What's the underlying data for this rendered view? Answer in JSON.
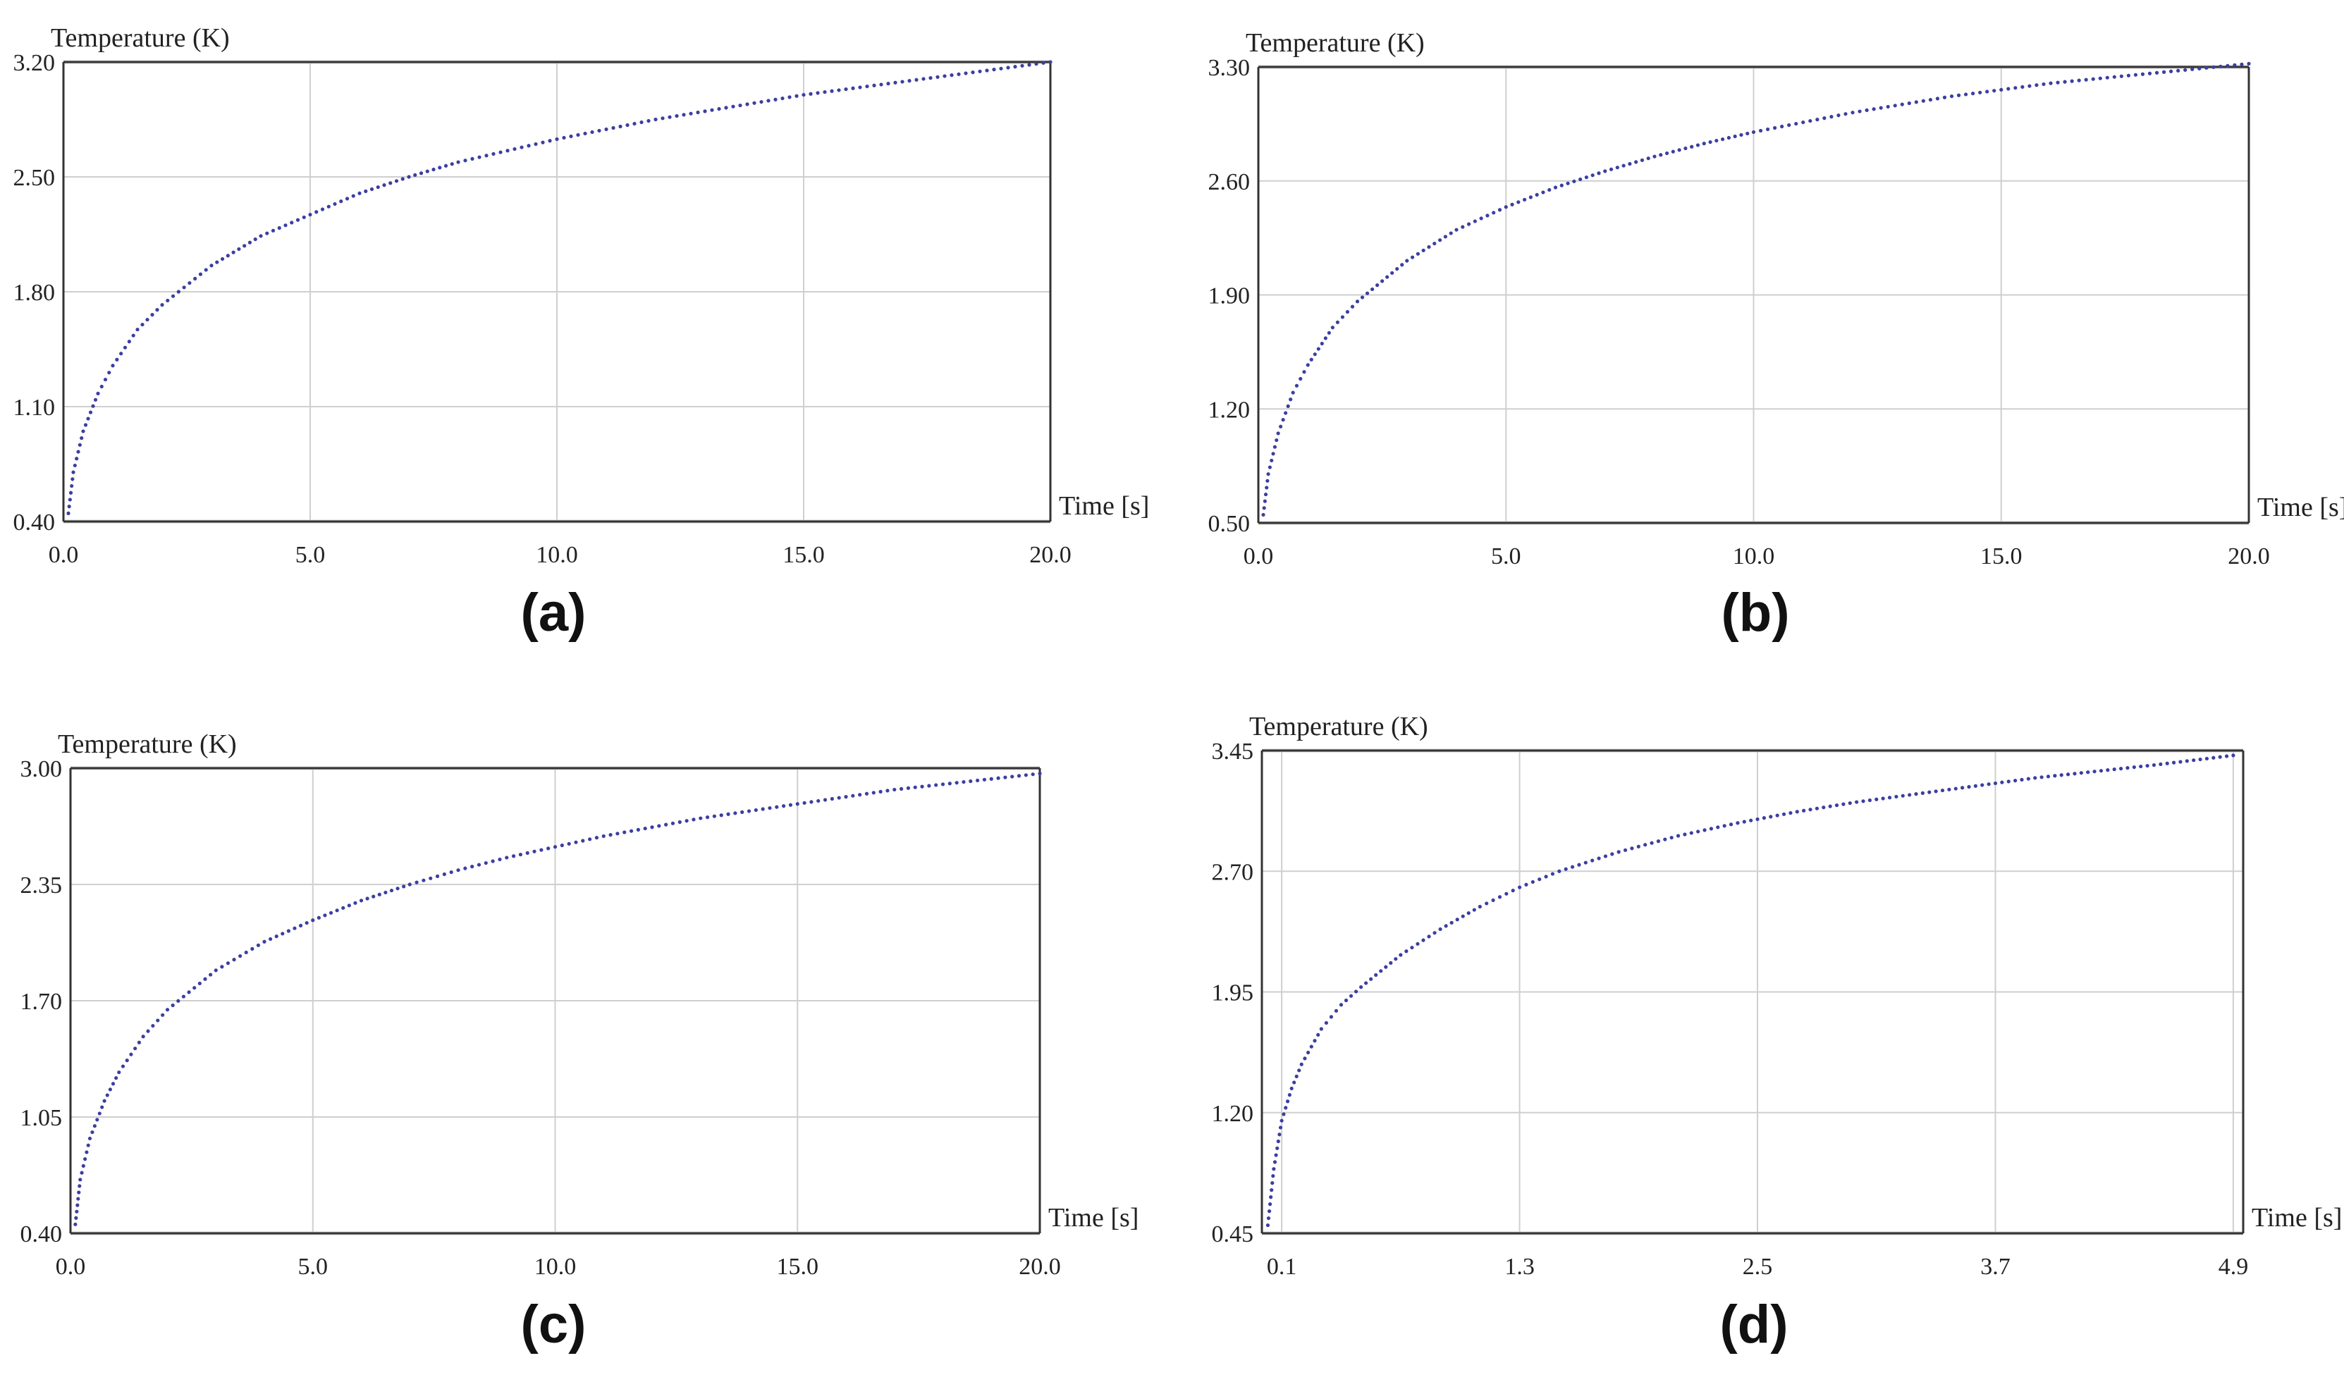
{
  "figure": {
    "panels": [
      {
        "caption": "(a)",
        "chart_data": {
          "type": "scatter",
          "ylabel": "Temperature (K)",
          "xlabel": "Time [s]",
          "xticks": [
            "0.0",
            "5.0",
            "10.0",
            "15.0",
            "20.0"
          ],
          "yticks": [
            "0.40",
            "1.10",
            "1.80",
            "2.50",
            "3.20"
          ],
          "xlim": [
            0,
            20
          ],
          "ylim": [
            0.4,
            3.2
          ],
          "grid": true,
          "colors": {
            "points": "#3b3fa0",
            "grid": "#cfcfcf",
            "frame": "#333333"
          },
          "series": [
            {
              "x": [
                0.1,
                0.2,
                0.4,
                0.7,
                1.0,
                1.5,
                2.0,
                3.0,
                4.0,
                5.0,
                6.0,
                7.0,
                8.0,
                9.0,
                10.0,
                11.0,
                12.0,
                13.0,
                14.0,
                15.0,
                16.0,
                17.0,
                18.0,
                19.0,
                20.0
              ],
              "y": [
                0.45,
                0.7,
                0.95,
                1.18,
                1.35,
                1.57,
                1.72,
                1.96,
                2.14,
                2.27,
                2.4,
                2.5,
                2.59,
                2.66,
                2.73,
                2.79,
                2.85,
                2.9,
                2.95,
                3.0,
                3.04,
                3.08,
                3.12,
                3.16,
                3.2
              ]
            }
          ]
        }
      },
      {
        "caption": "(b)",
        "chart_data": {
          "type": "scatter",
          "ylabel": "Temperature (K)",
          "xlabel": "Time [s]",
          "xticks": [
            "0.0",
            "5.0",
            "10.0",
            "15.0",
            "20.0"
          ],
          "yticks": [
            "0.50",
            "1.20",
            "1.90",
            "2.60",
            "3.30"
          ],
          "xlim": [
            0,
            20
          ],
          "ylim": [
            0.5,
            3.3
          ],
          "grid": true,
          "colors": {
            "points": "#3b3fa0",
            "grid": "#cfcfcf",
            "frame": "#333333"
          },
          "series": [
            {
              "x": [
                0.1,
                0.2,
                0.4,
                0.7,
                1.0,
                1.5,
                2.0,
                3.0,
                4.0,
                5.0,
                6.0,
                7.0,
                8.0,
                9.0,
                10.0,
                11.0,
                12.0,
                13.0,
                14.0,
                15.0,
                16.0,
                17.0,
                18.0,
                19.0,
                20.0
              ],
              "y": [
                0.55,
                0.8,
                1.05,
                1.3,
                1.47,
                1.7,
                1.86,
                2.11,
                2.3,
                2.44,
                2.56,
                2.66,
                2.75,
                2.83,
                2.9,
                2.96,
                3.02,
                3.07,
                3.12,
                3.16,
                3.2,
                3.23,
                3.26,
                3.29,
                3.32
              ]
            }
          ]
        }
      },
      {
        "caption": "(c)",
        "chart_data": {
          "type": "scatter",
          "ylabel": "Temperature (K)",
          "xlabel": "Time [s]",
          "xticks": [
            "0.0",
            "5.0",
            "10.0",
            "15.0",
            "20.0"
          ],
          "yticks": [
            "0.40",
            "1.05",
            "1.70",
            "2.35",
            "3.00"
          ],
          "xlim": [
            0,
            20
          ],
          "ylim": [
            0.4,
            3.0
          ],
          "grid": true,
          "colors": {
            "points": "#3b3fa0",
            "grid": "#cfcfcf",
            "frame": "#333333"
          },
          "series": [
            {
              "x": [
                0.1,
                0.2,
                0.4,
                0.7,
                1.0,
                1.5,
                2.0,
                3.0,
                4.0,
                5.0,
                6.0,
                7.0,
                8.0,
                9.0,
                10.0,
                11.0,
                12.0,
                13.0,
                14.0,
                15.0,
                16.0,
                17.0,
                18.0,
                19.0,
                20.0
              ],
              "y": [
                0.45,
                0.7,
                0.93,
                1.14,
                1.3,
                1.5,
                1.65,
                1.87,
                2.03,
                2.15,
                2.26,
                2.35,
                2.43,
                2.5,
                2.56,
                2.62,
                2.67,
                2.72,
                2.76,
                2.8,
                2.84,
                2.88,
                2.91,
                2.94,
                2.97
              ]
            }
          ]
        }
      },
      {
        "caption": "(d)",
        "chart_data": {
          "type": "scatter",
          "ylabel": "Temperature (K)",
          "xlabel": "Time [s]",
          "xticks": [
            "0.1",
            "1.3",
            "2.5",
            "3.7",
            "4.9"
          ],
          "yticks": [
            "0.45",
            "1.20",
            "1.95",
            "2.70",
            "3.45"
          ],
          "xlim": [
            0.0,
            4.95
          ],
          "ylim": [
            0.45,
            3.45
          ],
          "grid": true,
          "colors": {
            "points": "#3b3fa0",
            "grid": "#cfcfcf",
            "frame": "#333333"
          },
          "series": [
            {
              "x": [
                0.03,
                0.06,
                0.1,
                0.15,
                0.2,
                0.3,
                0.4,
                0.5,
                0.7,
                0.9,
                1.1,
                1.3,
                1.5,
                1.8,
                2.1,
                2.4,
                2.7,
                3.0,
                3.3,
                3.6,
                3.9,
                4.2,
                4.5,
                4.9
              ],
              "y": [
                0.5,
                0.85,
                1.15,
                1.35,
                1.5,
                1.72,
                1.87,
                1.98,
                2.18,
                2.34,
                2.48,
                2.6,
                2.7,
                2.82,
                2.92,
                3.0,
                3.07,
                3.13,
                3.18,
                3.23,
                3.28,
                3.32,
                3.36,
                3.42
              ]
            }
          ]
        }
      }
    ]
  }
}
